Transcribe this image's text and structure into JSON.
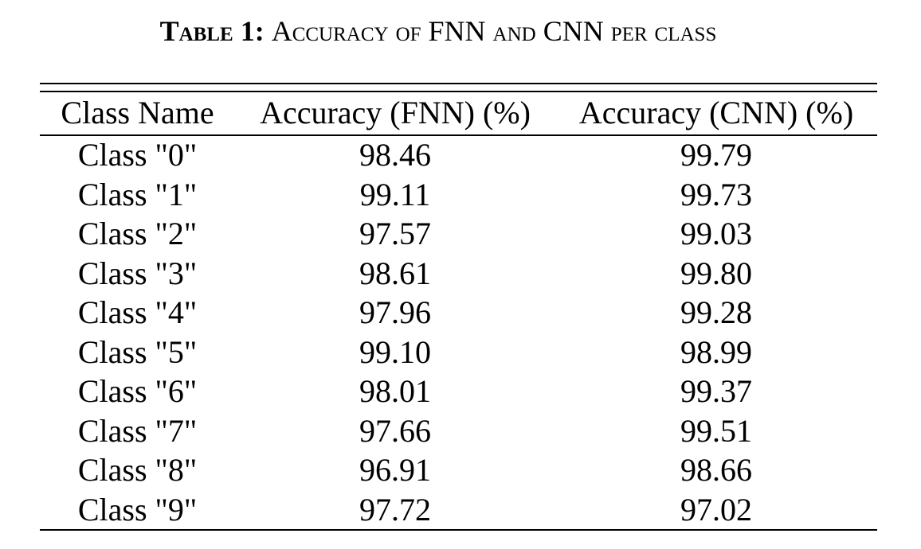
{
  "caption": {
    "label": "Table 1:",
    "title": "Accuracy of FNN and CNN per class"
  },
  "table": {
    "headers": [
      "Class Name",
      "Accuracy (FNN) (%)",
      "Accuracy (CNN) (%)"
    ],
    "rows": [
      [
        "Class \"0\"",
        "98.46",
        "99.79"
      ],
      [
        "Class \"1\"",
        "99.11",
        "99.73"
      ],
      [
        "Class \"2\"",
        "97.57",
        "99.03"
      ],
      [
        "Class \"3\"",
        "98.61",
        "99.80"
      ],
      [
        "Class \"4\"",
        "97.96",
        "99.28"
      ],
      [
        "Class \"5\"",
        "99.10",
        "98.99"
      ],
      [
        "Class \"6\"",
        "98.01",
        "99.37"
      ],
      [
        "Class \"7\"",
        "97.66",
        "99.51"
      ],
      [
        "Class \"8\"",
        "96.91",
        "98.66"
      ],
      [
        "Class \"9\"",
        "97.72",
        "97.02"
      ]
    ]
  }
}
